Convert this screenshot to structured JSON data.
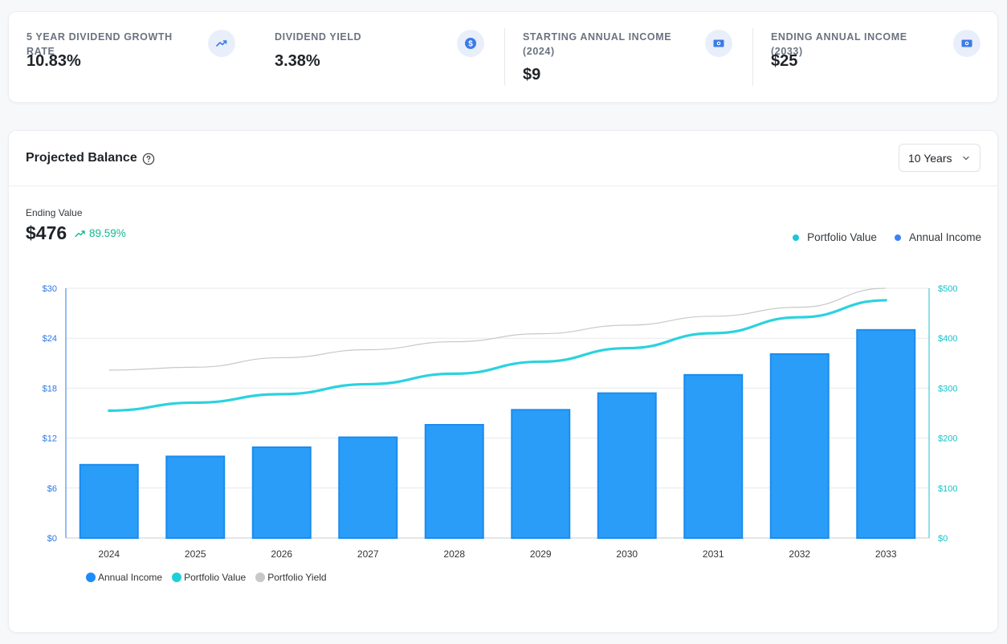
{
  "stats": [
    {
      "label": "5 YEAR DIVIDEND GROWTH RATE",
      "value": "10.83%",
      "icon": "trending-up-icon"
    },
    {
      "label": "DIVIDEND YIELD",
      "value": "3.38%",
      "icon": "dollar-coin-icon"
    },
    {
      "label": "STARTING ANNUAL INCOME (2024)",
      "value": "$9",
      "icon": "cash-icon"
    },
    {
      "label": "ENDING ANNUAL INCOME (2033)",
      "value": "$25",
      "icon": "cash-icon"
    }
  ],
  "card": {
    "title": "Projected Balance",
    "period": "10 Years",
    "ending_label": "Ending Value",
    "ending_value": "$476",
    "ending_change": "89.59%"
  },
  "top_legend": [
    {
      "label": "Portfolio Value",
      "color": "#1cc6d8"
    },
    {
      "label": "Annual Income",
      "color": "#3b82f6"
    }
  ],
  "bottom_legend": [
    {
      "label": "Annual Income",
      "color": "#1d8cf8"
    },
    {
      "label": "Portfolio Value",
      "color": "#1ecfd9"
    },
    {
      "label": "Portfolio Yield",
      "color": "#c8c8c8"
    }
  ],
  "colors": {
    "bar_fill": "#2a9df9",
    "bar_stroke": "#1a8cef",
    "portfolio_line": "#2bd2df",
    "yield_line": "#c8c8c8",
    "left_axis": "#2d77e6",
    "right_axis": "#14c3cc",
    "accent_green": "#14b88f"
  },
  "chart_data": {
    "type": "bar",
    "categories": [
      "2024",
      "2025",
      "2026",
      "2027",
      "2028",
      "2029",
      "2030",
      "2031",
      "2032",
      "2033"
    ],
    "series": [
      {
        "name": "Annual Income",
        "type": "bar",
        "axis": "left",
        "values": [
          8.8,
          9.8,
          10.9,
          12.1,
          13.6,
          15.4,
          17.4,
          19.6,
          22.1,
          25.0
        ]
      },
      {
        "name": "Portfolio Value",
        "type": "line",
        "axis": "right",
        "values": [
          255,
          271,
          288,
          308,
          329,
          353,
          380,
          410,
          442,
          476
        ]
      },
      {
        "name": "Portfolio Yield",
        "type": "line",
        "axis": "right",
        "values": [
          336,
          342,
          361,
          377,
          393,
          409,
          426,
          444,
          462,
          500
        ]
      }
    ],
    "left_axis": {
      "ylim": [
        0,
        30
      ],
      "ticks": [
        "$0",
        "$6",
        "$12",
        "$18",
        "$24",
        "$30"
      ],
      "tick_values": [
        0,
        6,
        12,
        18,
        24,
        30
      ]
    },
    "right_axis": {
      "ylim": [
        0,
        500
      ],
      "ticks": [
        "$0",
        "$100",
        "$200",
        "$300",
        "$400",
        "$500"
      ],
      "tick_values": [
        0,
        100,
        200,
        300,
        400,
        500
      ]
    },
    "grid": true,
    "legend": "bottom-left"
  }
}
